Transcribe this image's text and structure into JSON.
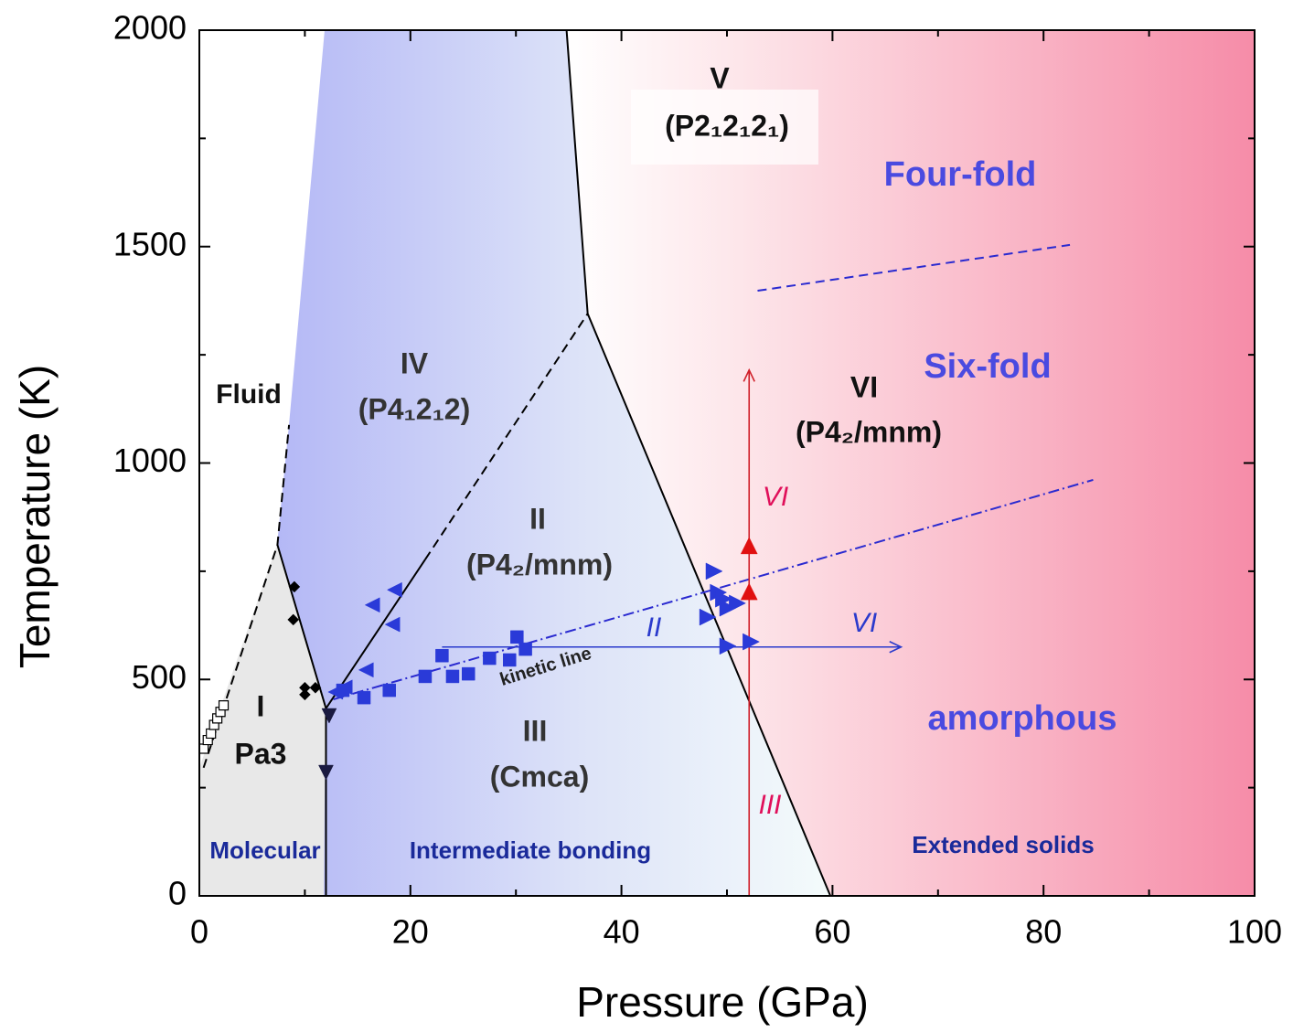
{
  "chart_data": {
    "type": "phase-diagram",
    "xlabel": "Pressure (GPa)",
    "ylabel": "Temperature (K)",
    "xlim": [
      0,
      100
    ],
    "ylim": [
      0,
      2000
    ],
    "xticks": [
      0,
      20,
      40,
      60,
      80,
      100
    ],
    "yticks": [
      0,
      500,
      1000,
      1500,
      2000
    ],
    "xminorticks": [
      10,
      30,
      50,
      70,
      90
    ],
    "yminorticks": [
      250,
      750,
      1250,
      1750
    ],
    "boundaries": [
      {
        "x": [
          0.4,
          7.4,
          8.5
        ],
        "y": [
          296,
          811,
          1088
        ],
        "color": "#000000",
        "dash": "dashed"
      },
      {
        "x": [
          7.4,
          12.0,
          12.0
        ],
        "y": [
          811,
          433,
          0
        ],
        "color": "#000000",
        "dash": "solid"
      },
      {
        "x": [
          12.0,
          21.4
        ],
        "y": [
          433,
          777
        ],
        "color": "#000000",
        "dash": "solid"
      },
      {
        "x": [
          21.4,
          36.8
        ],
        "y": [
          777,
          1345
        ],
        "color": "#000000",
        "dash": "dashed"
      },
      {
        "x": [
          34.8,
          36.8,
          59.8
        ],
        "y": [
          2000,
          1345,
          0
        ],
        "color": "#000000",
        "dash": "solid"
      },
      {
        "x": [
          52.9,
          82.5
        ],
        "y": [
          1398,
          1504
        ],
        "color": "#2a2ad0",
        "dash": "dashed"
      },
      {
        "x": [
          12.7,
          84.7
        ],
        "y": [
          454,
          961
        ],
        "color": "#2a2ad0",
        "dash": "dashdot"
      }
    ],
    "arrows": [
      {
        "x": [
          52.1,
          52.1
        ],
        "y": [
          0,
          1215
        ],
        "color": "#d0202a"
      },
      {
        "x": [
          23.0,
          66.5
        ],
        "y": [
          575,
          575
        ],
        "color": "#2a3acc"
      }
    ],
    "points": [
      {
        "marker": "open-square",
        "color": "#000000",
        "x": [
          0.4,
          0.8,
          1.1,
          1.4,
          1.7,
          2.0,
          2.3
        ],
        "y": [
          340,
          360,
          375,
          395,
          410,
          425,
          440
        ]
      },
      {
        "marker": "diamond",
        "color": "#000000",
        "x": [
          9.0,
          8.9,
          10.0,
          10.0,
          11.0
        ],
        "y": [
          714,
          638,
          481,
          465,
          481
        ]
      },
      {
        "marker": "left-triangle",
        "color": "#2a3ad8",
        "x": [
          18.5,
          16.4,
          18.3,
          15.8,
          13.8,
          12.9
        ],
        "y": [
          707,
          672,
          627,
          522,
          482,
          471
        ]
      },
      {
        "marker": "down-triangle",
        "color": "#1a1a40",
        "x": [
          12.3,
          12.0
        ],
        "y": [
          416,
          285
        ]
      },
      {
        "marker": "square",
        "color": "#2a3ad8",
        "x": [
          13.6,
          15.6,
          18.0,
          21.4,
          23.0,
          24.0,
          25.5,
          27.5,
          29.4,
          30.1,
          30.9
        ],
        "y": [
          475,
          458,
          475,
          507,
          555,
          507,
          513,
          549,
          545,
          598,
          570
        ]
      },
      {
        "marker": "right-triangle",
        "color": "#2a3ad8",
        "x": [
          48.7,
          49.1,
          48.1,
          50.0,
          50.9,
          50.0,
          52.2,
          49.6
        ],
        "y": [
          750,
          701,
          644,
          665,
          676,
          577,
          587,
          686
        ]
      },
      {
        "marker": "up-triangle",
        "color": "#e01010",
        "x": [
          52.1,
          52.1
        ],
        "y": [
          807,
          701
        ]
      }
    ],
    "annotations": [
      "Fluid",
      "IV",
      "(P4₁2₁2)",
      "II",
      "(P4₂/mnm)",
      "III",
      "(Cmca)",
      "I",
      "Pa3",
      "V",
      "(P2₁2₁2₁)",
      "Four-fold",
      "Six-fold",
      "VI",
      "(P4₂/mnm)",
      "amorphous",
      "VI",
      "III",
      "II",
      "VI",
      "kinetic line",
      "Molecular",
      "Intermediate bonding",
      "Extended solids"
    ]
  }
}
